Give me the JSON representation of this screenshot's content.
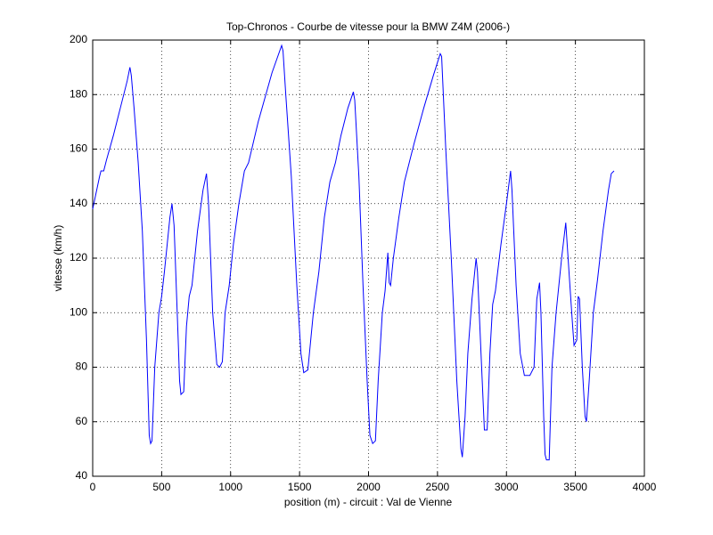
{
  "chart_data": {
    "type": "line",
    "title": "Top-Chronos - Courbe de vitesse pour la BMW Z4M (2006-)",
    "x_label": "position (m) - circuit : Val de Vienne",
    "y_label": "vitesse (km/h)",
    "color": "#0000ff",
    "grid": true,
    "xlim": [
      0,
      4000
    ],
    "xticks": [
      0,
      500,
      1000,
      1500,
      2000,
      2500,
      3000,
      3500,
      4000
    ],
    "ylim": [
      40,
      200
    ],
    "yticks": [
      40,
      60,
      80,
      100,
      120,
      140,
      160,
      180,
      200
    ],
    "x": [
      0,
      50,
      60,
      80,
      100,
      150,
      200,
      250,
      270,
      280,
      300,
      330,
      360,
      390,
      410,
      420,
      430,
      450,
      480,
      500,
      520,
      560,
      575,
      590,
      620,
      630,
      640,
      660,
      680,
      700,
      720,
      760,
      800,
      825,
      840,
      870,
      900,
      920,
      940,
      960,
      990,
      1020,
      1060,
      1100,
      1130,
      1200,
      1300,
      1370,
      1380,
      1400,
      1440,
      1480,
      1510,
      1530,
      1560,
      1600,
      1640,
      1680,
      1720,
      1760,
      1800,
      1850,
      1890,
      1900,
      1930,
      1960,
      1990,
      2010,
      2030,
      2050,
      2070,
      2100,
      2120,
      2130,
      2140,
      2150,
      2160,
      2180,
      2220,
      2260,
      2280,
      2330,
      2400,
      2470,
      2520,
      2530,
      2560,
      2600,
      2640,
      2670,
      2680,
      2700,
      2720,
      2750,
      2770,
      2780,
      2790,
      2820,
      2840,
      2860,
      2880,
      2900,
      2920,
      2960,
      3000,
      3030,
      3040,
      3070,
      3100,
      3130,
      3170,
      3200,
      3220,
      3240,
      3250,
      3270,
      3280,
      3290,
      3310,
      3330,
      3360,
      3400,
      3430,
      3460,
      3480,
      3490,
      3510,
      3520,
      3530,
      3550,
      3570,
      3580,
      3600,
      3630,
      3660,
      3700,
      3740,
      3760,
      3780
    ],
    "values": [
      138,
      150,
      152,
      152,
      156,
      165,
      175,
      185,
      190,
      187,
      175,
      155,
      130,
      90,
      55,
      52,
      53,
      80,
      100,
      106,
      115,
      135,
      140,
      132,
      90,
      75,
      70,
      71,
      95,
      106,
      110,
      130,
      145,
      151,
      140,
      100,
      81,
      80,
      82,
      100,
      110,
      125,
      140,
      152,
      155,
      170,
      188,
      198,
      196,
      180,
      150,
      110,
      85,
      78,
      79,
      100,
      115,
      135,
      148,
      155,
      165,
      175,
      181,
      178,
      150,
      110,
      75,
      55,
      52,
      53,
      75,
      100,
      108,
      115,
      122,
      111,
      110,
      120,
      135,
      148,
      152,
      162,
      175,
      187,
      195,
      194,
      160,
      120,
      75,
      50,
      47,
      62,
      85,
      105,
      115,
      120,
      115,
      80,
      57,
      57,
      85,
      103,
      108,
      125,
      140,
      152,
      145,
      110,
      85,
      77,
      77,
      80,
      105,
      111,
      100,
      62,
      48,
      46,
      46,
      80,
      100,
      120,
      133,
      110,
      95,
      88,
      90,
      106,
      105,
      80,
      62,
      60,
      75,
      100,
      112,
      130,
      145,
      151,
      152
    ]
  }
}
